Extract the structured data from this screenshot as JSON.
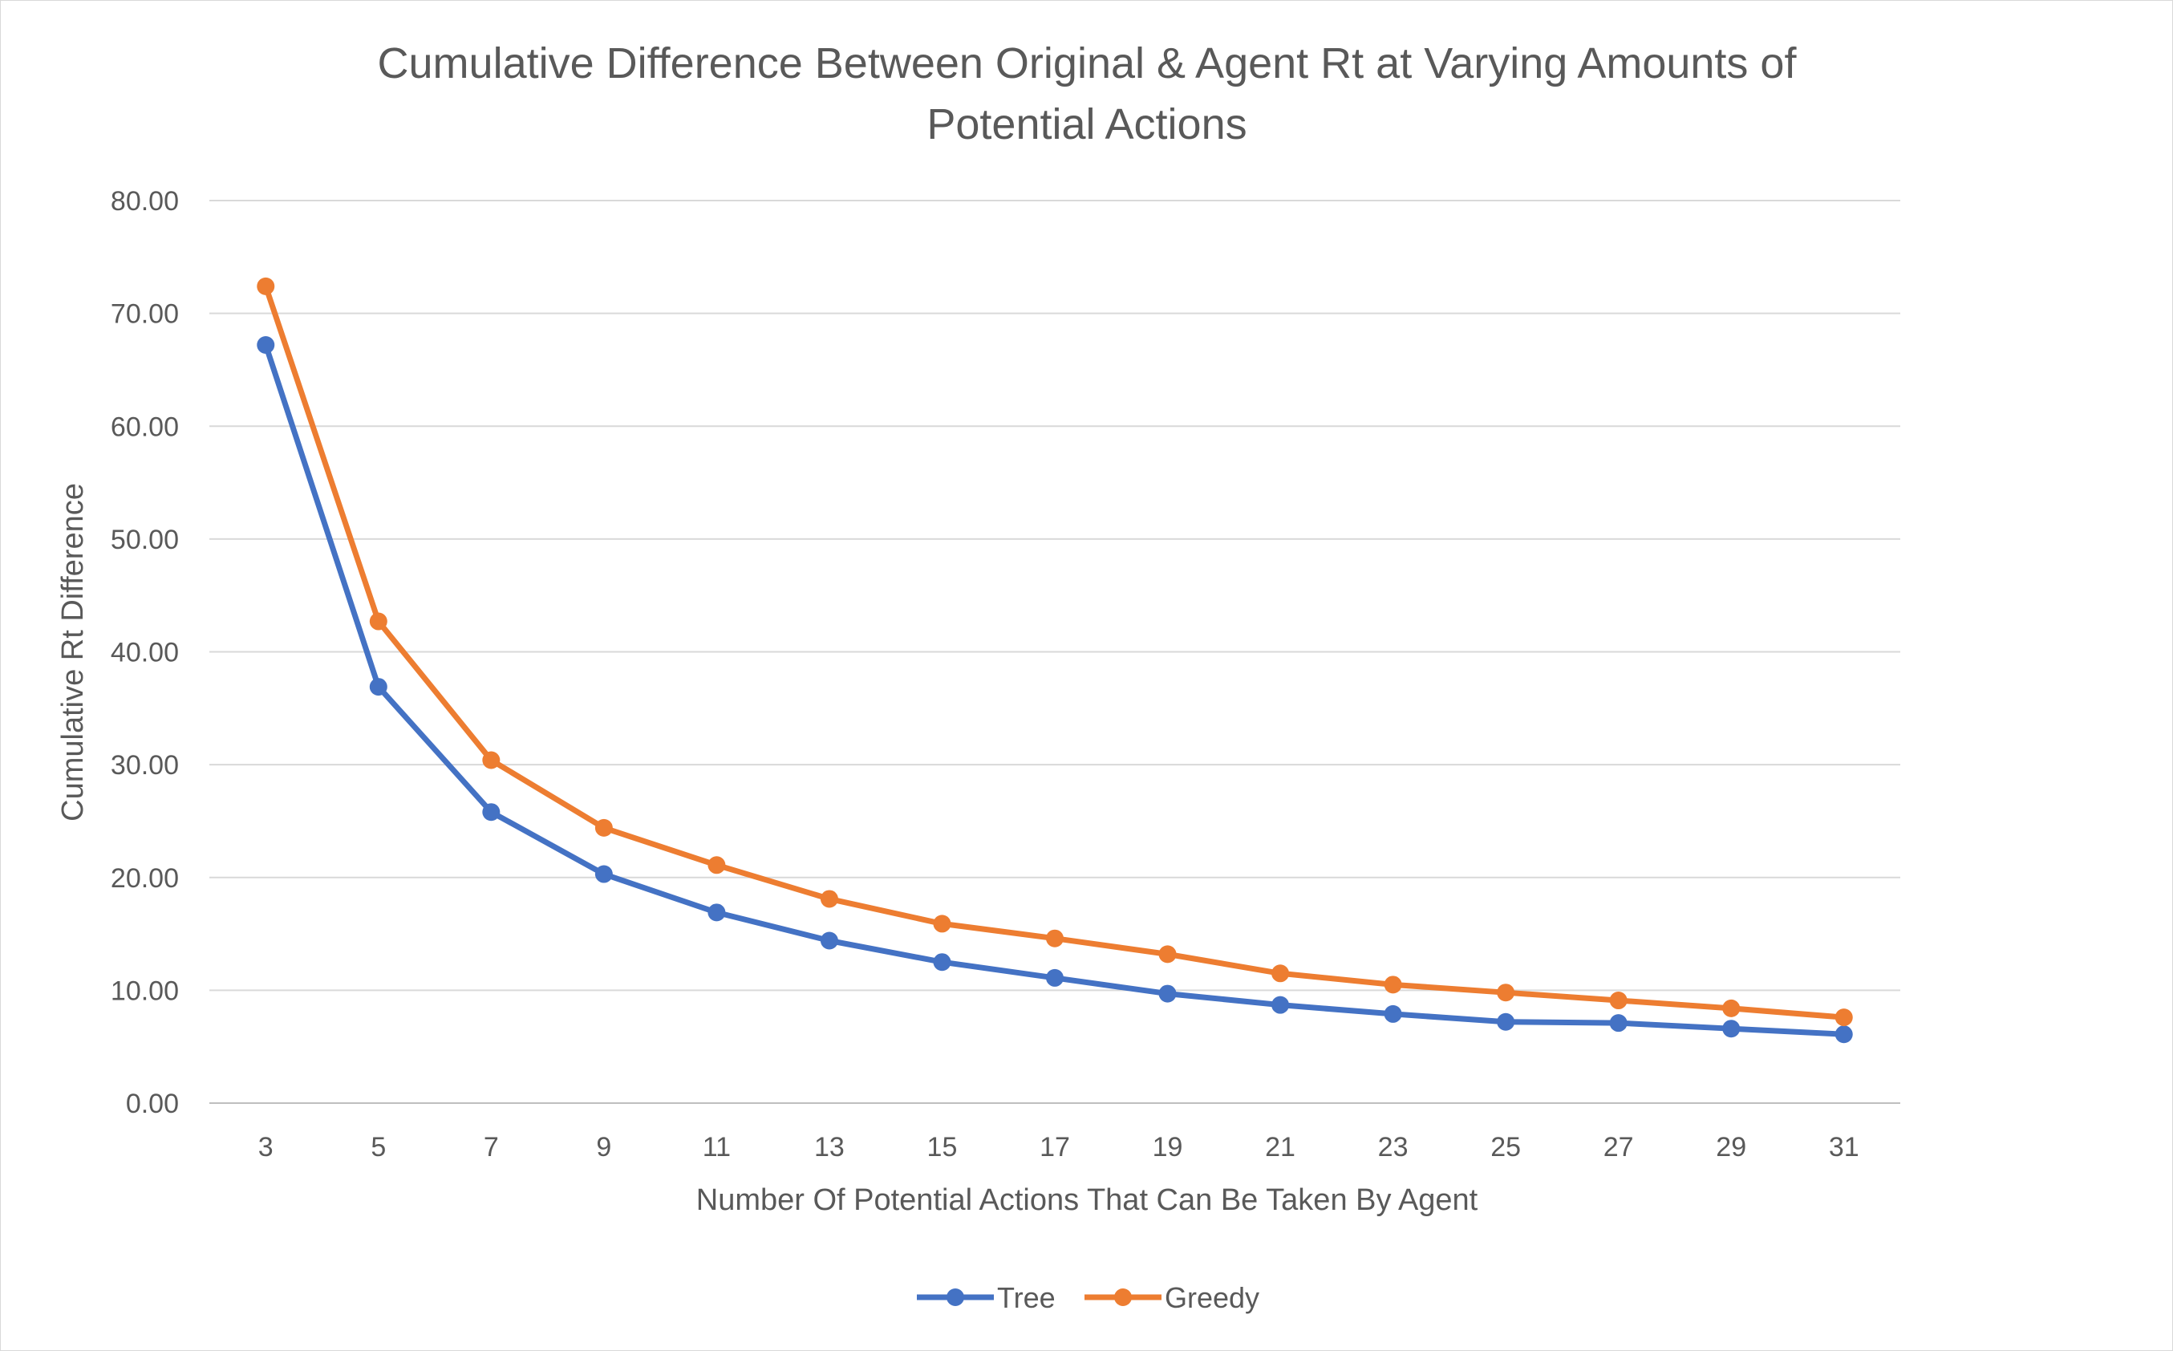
{
  "chart_data": {
    "type": "line",
    "title": "Cumulative Difference Between Original & Agent Rt at Varying Amounts of Potential Actions",
    "title_lines": [
      "Cumulative Difference Between Original & Agent Rt at Varying Amounts of",
      "Potential Actions"
    ],
    "xlabel": "Number Of Potential Actions That Can Be Taken By Agent",
    "ylabel": "Cumulative Rt Difference",
    "categories": [
      "3",
      "5",
      "7",
      "9",
      "11",
      "13",
      "15",
      "17",
      "19",
      "21",
      "23",
      "25",
      "27",
      "29",
      "31"
    ],
    "ylim": [
      0,
      80
    ],
    "yticks": [
      "0.00",
      "10.00",
      "20.00",
      "30.00",
      "40.00",
      "50.00",
      "60.00",
      "70.00",
      "80.00"
    ],
    "grid": true,
    "legend_position": "bottom",
    "series": [
      {
        "name": "Tree",
        "color": "#4472c4",
        "values": [
          67.2,
          36.9,
          25.8,
          20.3,
          16.9,
          14.4,
          12.5,
          11.1,
          9.7,
          8.7,
          7.9,
          7.2,
          7.1,
          6.6,
          6.1
        ]
      },
      {
        "name": "Greedy",
        "color": "#ed7d31",
        "values": [
          72.4,
          42.7,
          30.4,
          24.4,
          21.1,
          18.1,
          15.9,
          14.6,
          13.2,
          11.5,
          10.5,
          9.8,
          9.1,
          8.4,
          7.6
        ]
      }
    ]
  }
}
